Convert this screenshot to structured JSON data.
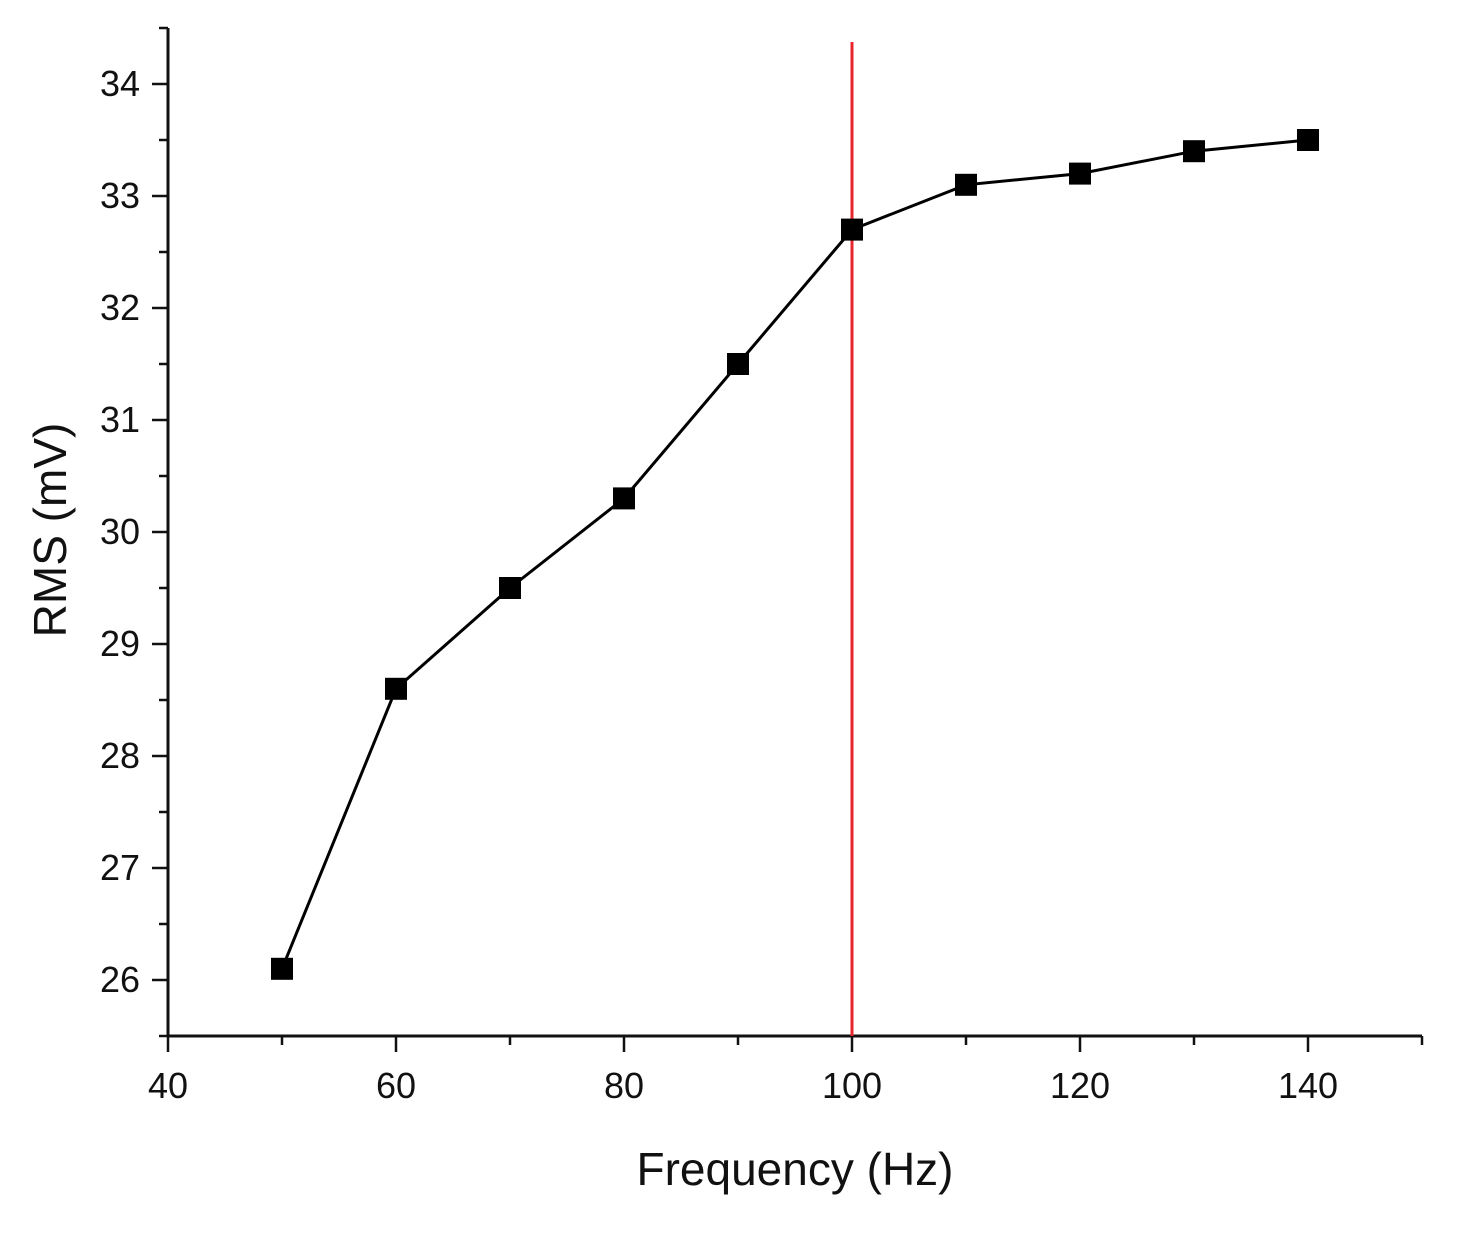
{
  "chart_data": {
    "type": "line",
    "title": "",
    "xlabel": "Frequency (Hz)",
    "ylabel": "RMS (mV)",
    "xlim": [
      40,
      150
    ],
    "ylim": [
      25.5,
      34.5
    ],
    "x_ticks": [
      40,
      60,
      80,
      100,
      120,
      140
    ],
    "y_ticks": [
      26,
      27,
      28,
      29,
      30,
      31,
      32,
      33,
      34
    ],
    "grid": false,
    "series": [
      {
        "name": "RMS",
        "marker": "square",
        "color": "#000000",
        "x": [
          50,
          60,
          70,
          80,
          90,
          100,
          110,
          120,
          130,
          140
        ],
        "y": [
          26.1,
          28.6,
          29.5,
          30.3,
          31.5,
          32.7,
          33.1,
          33.2,
          33.4,
          33.5
        ]
      }
    ],
    "annotations": [
      {
        "type": "vertical-line",
        "x": 100,
        "color": "#e8262d"
      }
    ]
  }
}
